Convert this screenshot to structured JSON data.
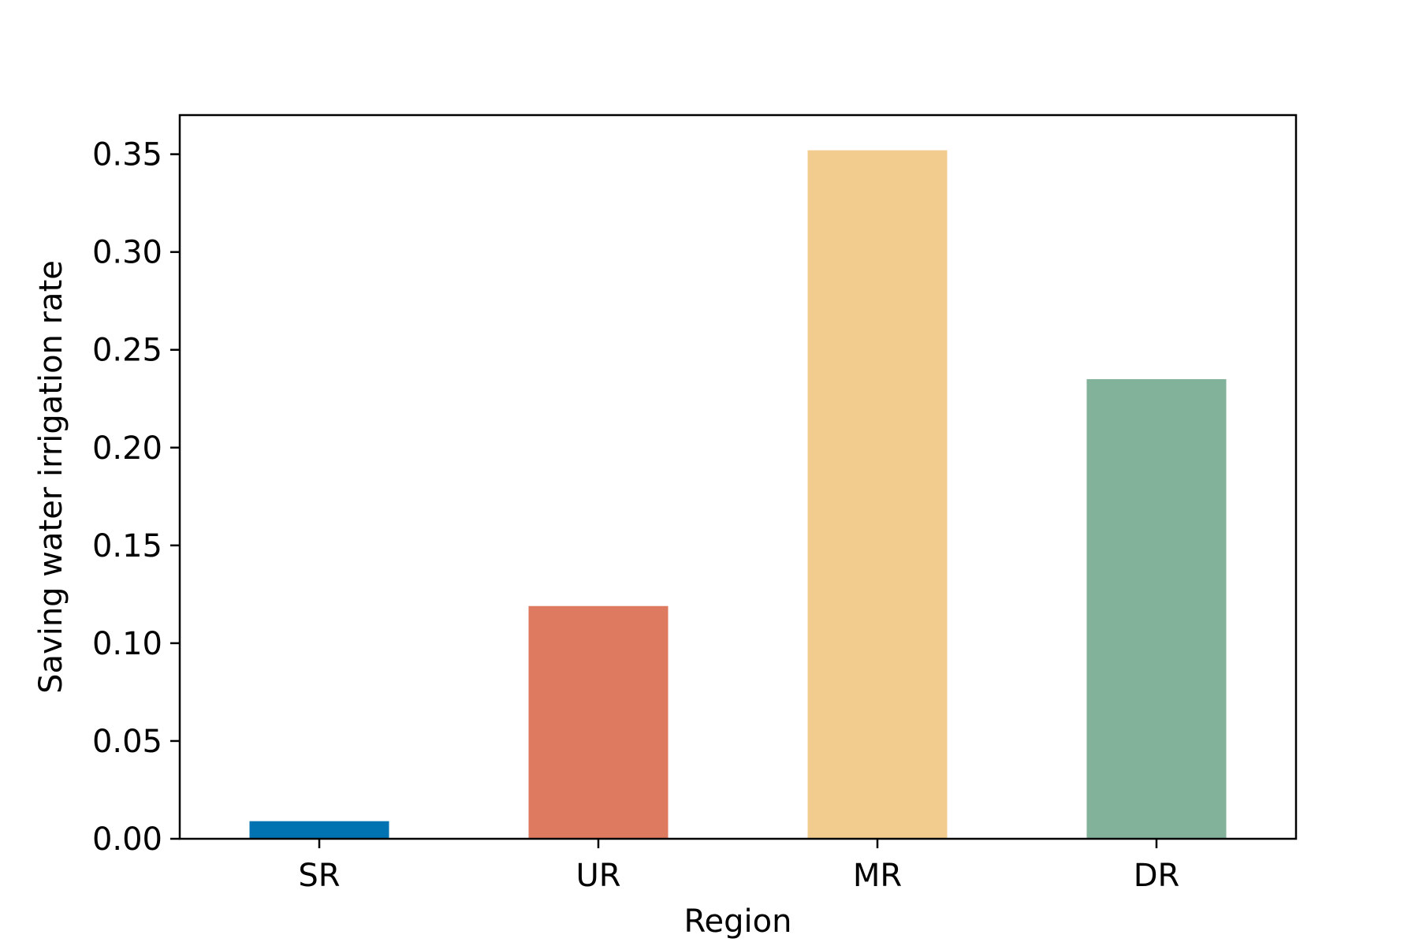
{
  "chart_data": {
    "type": "bar",
    "title": "",
    "xlabel": "Region",
    "ylabel": "Saving water irrigation rate",
    "categories": [
      "SR",
      "UR",
      "MR",
      "DR"
    ],
    "values": [
      0.009,
      0.119,
      0.352,
      0.235
    ],
    "colors": [
      "#0173b2",
      "#de7a60",
      "#f1cc8e",
      "#82b29a"
    ],
    "ylim": [
      0,
      0.37
    ],
    "yticks": [
      0.0,
      0.05,
      0.1,
      0.15,
      0.2,
      0.25,
      0.3,
      0.35
    ],
    "ytick_labels": [
      "0.00",
      "0.05",
      "0.10",
      "0.15",
      "0.20",
      "0.25",
      "0.30",
      "0.35"
    ],
    "grid": false,
    "legend": "none"
  }
}
